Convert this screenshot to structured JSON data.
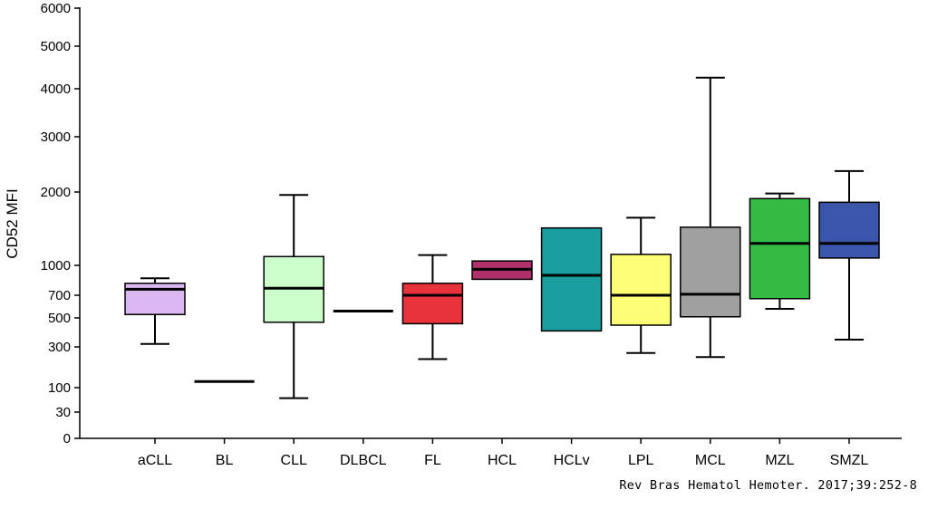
{
  "chart_data": {
    "type": "boxplot",
    "ylabel": "CD52 MFI",
    "yscale": "nonlinear (square-root-like)",
    "ylim": [
      0,
      6000
    ],
    "yticks": [
      0,
      30,
      100,
      300,
      500,
      700,
      1000,
      2000,
      3000,
      4000,
      5000,
      6000
    ],
    "categories": [
      "aCLL",
      "BL",
      "CLL",
      "DLBCL",
      "FL",
      "HCL",
      "HCLv",
      "LPL",
      "MCL",
      "MZL",
      "SMZL"
    ],
    "boxes": [
      {
        "name": "aCLL",
        "color": "#dcb8f0",
        "whisker_low": 320,
        "q1": 530,
        "median": 760,
        "q3": 820,
        "whisker_high": 870
      },
      {
        "name": "BL",
        "color": "#ffffff",
        "whisker_low": 130,
        "q1": 130,
        "median": 130,
        "q3": 130,
        "whisker_high": 130
      },
      {
        "name": "CLL",
        "color": "#ccffcc",
        "whisker_low": 70,
        "q1": 470,
        "median": 770,
        "q3": 1120,
        "whisker_high": 1960
      },
      {
        "name": "DLBCL",
        "color": "#ffffff",
        "whisker_low": 560,
        "q1": 560,
        "median": 560,
        "q3": 560,
        "whisker_high": 560
      },
      {
        "name": "FL",
        "color": "#e8333c",
        "whisker_low": 240,
        "q1": 460,
        "median": 700,
        "q3": 820,
        "whisker_high": 1140
      },
      {
        "name": "HCL",
        "color": "#b0306a",
        "whisker_low": 860,
        "q1": 860,
        "median": 960,
        "q3": 1060,
        "whisker_high": 1060
      },
      {
        "name": "HCLv",
        "color": "#1a9e9e",
        "whisker_low": 410,
        "q1": 410,
        "median": 900,
        "q3": 1510,
        "whisker_high": 1510
      },
      {
        "name": "LPL",
        "color": "#ffff77",
        "whisker_low": 270,
        "q1": 450,
        "median": 700,
        "q3": 1150,
        "whisker_high": 1650
      },
      {
        "name": "MCL",
        "color": "#a0a0a0",
        "whisker_low": 250,
        "q1": 510,
        "median": 710,
        "q3": 1520,
        "whisker_high": 4260
      },
      {
        "name": "MZL",
        "color": "#33bb44",
        "whisker_low": 580,
        "q1": 670,
        "median": 1300,
        "q3": 1910,
        "whisker_high": 1980
      },
      {
        "name": "SMZL",
        "color": "#3a55aa",
        "whisker_low": 350,
        "q1": 1100,
        "median": 1300,
        "q3": 1860,
        "whisker_high": 2380
      }
    ],
    "grid": false,
    "legend": "none"
  },
  "citation": "Rev Bras Hematol Hemoter. 2017;39:252-8"
}
